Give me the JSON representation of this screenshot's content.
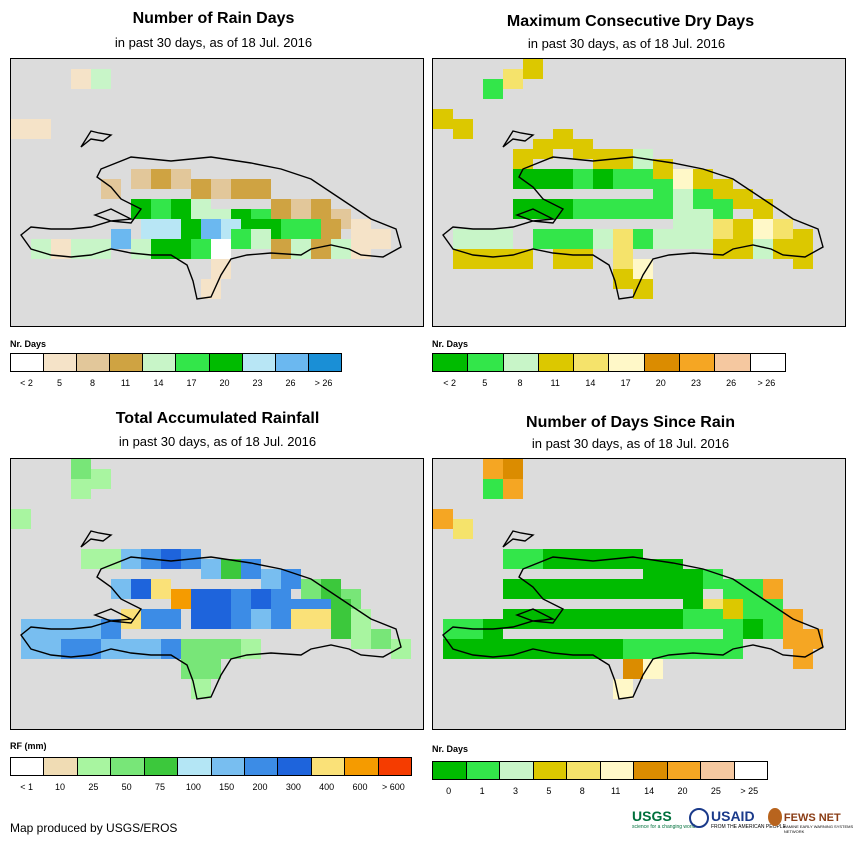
{
  "panels": [
    {
      "id": "rain-days",
      "title": "Number of Rain Days",
      "subtitle": "in past 30 days, as of 18 Jul. 2016",
      "legend_title": "Nr. Days",
      "legend_colors": [
        "#ffffff",
        "#f5e3c8",
        "#e2c79a",
        "#cfa342",
        "#c8f5c8",
        "#33e64a",
        "#00bb00",
        "#b8e6f5",
        "#6bb8f0",
        "#1a8fd6"
      ],
      "legend_labels": [
        "< 2",
        "5",
        "8",
        "11",
        "14",
        "17",
        "20",
        "23",
        "26",
        "> 26"
      ]
    },
    {
      "id": "dry-days",
      "title": "Maximum Consecutive Dry Days",
      "subtitle": "in past 30 days, as of 18 Jul. 2016",
      "legend_title": "Nr. Days",
      "legend_colors": [
        "#00bb00",
        "#33e64a",
        "#c8f5c8",
        "#dcc800",
        "#f5e36b",
        "#fff8c8",
        "#db8c00",
        "#f5a623",
        "#f5c8a0",
        "#ffffff"
      ],
      "legend_labels": [
        "< 2",
        "5",
        "8",
        "11",
        "14",
        "17",
        "20",
        "23",
        "26",
        "> 26"
      ]
    },
    {
      "id": "rainfall",
      "title": "Total Accumulated Rainfall",
      "subtitle": "in past 30 days, as of 18 Jul. 2016",
      "legend_title": "RF (mm)",
      "legend_colors": [
        "#ffffff",
        "#f0dcb4",
        "#a8f5a0",
        "#78e678",
        "#3cc83c",
        "#b4e6f5",
        "#78bef0",
        "#3c8ce6",
        "#1e64dc",
        "#fae178",
        "#f59b00",
        "#f53c00"
      ],
      "legend_labels": [
        "< 1",
        "10",
        "25",
        "50",
        "75",
        "100",
        "150",
        "200",
        "300",
        "400",
        "600",
        "> 600"
      ]
    },
    {
      "id": "since-rain",
      "title": "Number of Days Since Rain",
      "subtitle": "in past 30 days, as of 18 Jul. 2016",
      "legend_title": "Nr. Days",
      "legend_colors": [
        "#00bb00",
        "#33e64a",
        "#c8f5c8",
        "#dcc800",
        "#f5e36b",
        "#fff8c8",
        "#db8c00",
        "#f5a623",
        "#f5c8a0",
        "#ffffff"
      ],
      "legend_labels": [
        "0",
        "1",
        "3",
        "5",
        "8",
        "11",
        "14",
        "20",
        "25",
        "> 25"
      ]
    }
  ],
  "footer": {
    "credit": "Map produced by USGS/EROS",
    "usgs": "USGS",
    "usgs_tag": "science for a changing world",
    "usaid": "USAID",
    "usaid_tag": "FROM THE AMERICAN PEOPLE",
    "fews": "FEWS NET",
    "fews_tag": "FAMINE EARLY WARNING SYSTEMS NETWORK"
  }
}
